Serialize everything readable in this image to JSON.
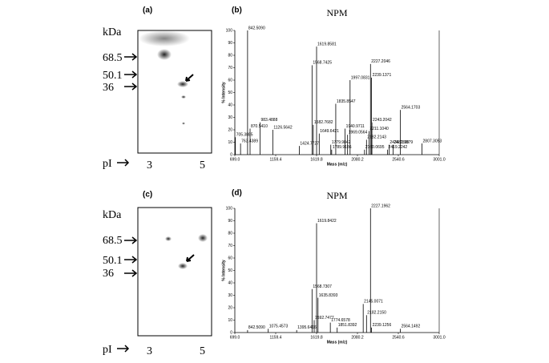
{
  "gels": [
    {
      "label": "(a)",
      "unit": "kDa",
      "markers": [
        "68.5",
        "50.1",
        "36"
      ],
      "axis": "pI",
      "pi": [
        "3",
        "5"
      ]
    },
    {
      "label": "(c)",
      "unit": "kDa",
      "markers": [
        "68.5",
        "50.1",
        "36"
      ],
      "axis": "pI",
      "pi": [
        "3",
        "5"
      ]
    }
  ],
  "chart_data": [
    {
      "type": "stem",
      "panel": "(b)",
      "title": "NPM",
      "x_label": "Mass (m/z)",
      "y_label": "% Intensity",
      "color": "#000000",
      "xlim": [
        699.0,
        3001.0
      ],
      "xticks": [
        {
          "value": 699.0,
          "label": "699.0"
        },
        1159.4,
        1619.8,
        2080.2,
        2540.6,
        {
          "value": 3001.0,
          "label": "3001.0"
        }
      ],
      "ylim": [
        0,
        100
      ],
      "yticks": [
        0,
        10,
        20,
        30,
        40,
        50,
        60,
        70,
        80,
        90,
        100
      ],
      "x": [
        705.3885,
        763.4389,
        842.509,
        870.541,
        983.4888,
        1126.5642,
        1424.7727,
        1568.7425,
        1582.7682,
        1619.8581,
        1649.6421,
        1779.9842,
        1789.9186,
        1835.8547,
        1940.9711,
        1969.0564,
        1997.0831,
        2160.0695,
        2182.2143,
        2211.104,
        2227.2046,
        2239.1371,
        2243.2042,
        2419.2242,
        2436.0398,
        2482.1979,
        2564.1703,
        2807.3053
      ],
      "values": [
        14,
        9,
        100,
        21,
        26,
        20,
        7,
        72,
        24,
        87,
        17,
        8,
        4,
        41,
        21,
        16,
        60,
        4,
        12,
        19,
        73,
        62,
        26,
        4,
        8,
        8,
        36,
        9
      ],
      "value_labels": [
        "705.3885",
        "763.4389",
        "842.5090",
        "870.5410",
        "983.4888",
        "1126.5642",
        "1424.7727",
        "1568.7425",
        "1582.7682",
        "1619.8581",
        "1649.6421",
        "1779.9842",
        "1789.9186",
        "1835.8547",
        "1940.9711",
        "1969.0564",
        "1997.0831",
        "2160.0695",
        "2182.2143",
        "2211.1040",
        "2227.2046",
        "2239.1371",
        "2243.2042",
        "2419.2242",
        "2436.0398",
        "2482.1979",
        "2564.1703",
        "2807.3053"
      ]
    },
    {
      "type": "stem",
      "panel": "(d)",
      "title": "NPM",
      "x_label": "Mass (m/z)",
      "y_label": "% Intensity",
      "color": "#000000",
      "xlim": [
        699.0,
        3001.0
      ],
      "xticks": [
        {
          "value": 699.0,
          "label": "699.0"
        },
        1159.4,
        1619.8,
        2080.2,
        2540.6,
        {
          "value": 3001.0,
          "label": "3001.0"
        }
      ],
      "ylim": [
        0,
        100
      ],
      "yticks": [
        0,
        10,
        20,
        30,
        40,
        50,
        60,
        70,
        80,
        90,
        100
      ],
      "x": [
        842.509,
        1075.4573,
        1395.6416,
        1568.7307,
        1592.7477,
        1619.8422,
        1635.8393,
        1774.6578,
        1851.8392,
        2145.0071,
        2182.215,
        2227.1962,
        2239.1256,
        2564.1492
      ],
      "values": [
        2,
        3,
        2,
        35,
        10,
        88,
        28,
        8,
        4,
        23,
        14,
        100,
        4,
        3
      ],
      "value_labels": [
        "842.5090",
        "1075.4573",
        "1395.6416",
        "1568.7307",
        "1592.7477",
        "1619.8422",
        "1635.8393",
        "1774.6578",
        "1851.8392",
        "2145.0071",
        "2182.2150",
        "2227.1962",
        "2239.1256",
        "2564.1492"
      ]
    }
  ]
}
